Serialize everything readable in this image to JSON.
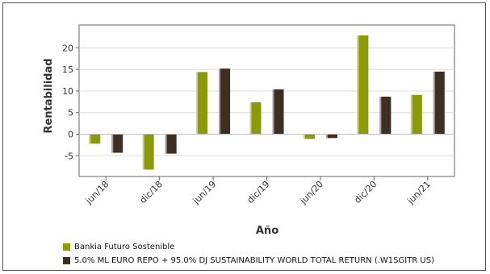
{
  "chart_data": {
    "type": "bar",
    "categories": [
      "jun/18",
      "dic/18",
      "jun/19",
      "dic/19",
      "jun/20",
      "dic/20",
      "jun/21"
    ],
    "series": [
      {
        "name": "Bankia Futuro Sostenible",
        "values": [
          -2.2,
          -8.2,
          14.4,
          7.4,
          -1.1,
          22.9,
          9.1
        ],
        "color": "#8a9a0b"
      },
      {
        "name": "5.0% ML EURO REPO + 95.0% DJ SUSTAINABILITY WORLD TOTAL RETURN (.W1SGITR US)",
        "values": [
          -4.3,
          -4.5,
          15.2,
          10.4,
          -0.9,
          8.7,
          14.5
        ],
        "color": "#3f2e22"
      }
    ],
    "xlabel": "Año",
    "ylabel": "Rentabilidad",
    "yticks": [
      -5,
      0,
      5,
      10,
      15,
      20
    ],
    "ylim": [
      -9.8,
      25.3
    ],
    "grid": true,
    "legend_position": "bottom-left"
  }
}
